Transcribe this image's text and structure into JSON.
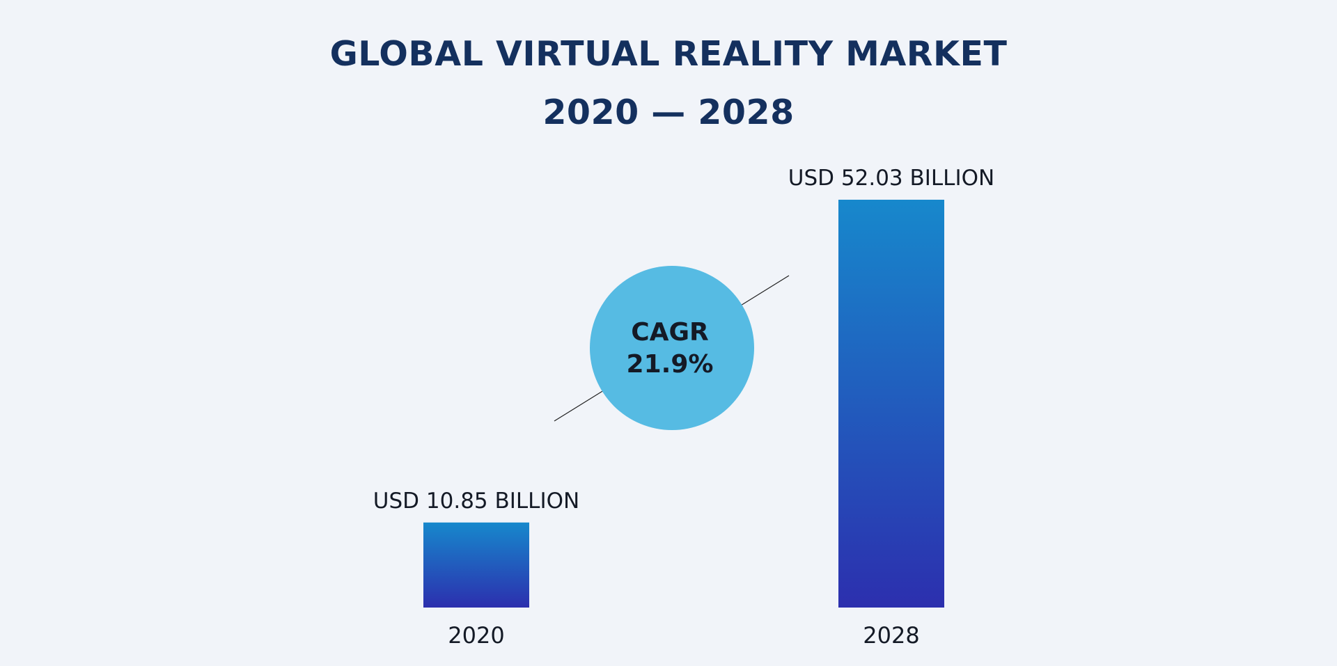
{
  "chart_data": {
    "type": "bar",
    "title": "GLOBAL VIRTUAL REALITY MARKET",
    "subtitle": "2020 — 2028",
    "categories": [
      "2020",
      "2028"
    ],
    "values": [
      10.85,
      52.03
    ],
    "value_labels": [
      "USD 10.85 BILLION",
      "USD 52.03 BILLION"
    ],
    "unit": "USD Billion",
    "annotation": {
      "label": "CAGR",
      "value": "21.9%"
    },
    "xlabel": "",
    "ylabel": "",
    "grid": false
  },
  "colors": {
    "background": "#f1f4f9",
    "title": "#14305e",
    "bar_top": "#1788cc",
    "bar_bottom": "#2c2fae",
    "cagr_circle": "#56bbe3",
    "text": "#141a26"
  }
}
